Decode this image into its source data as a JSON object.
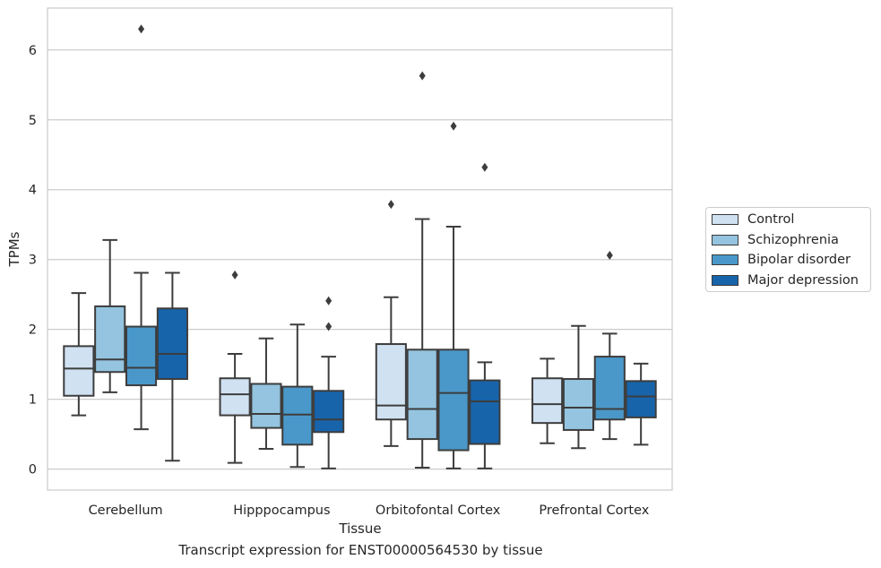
{
  "chart_data": {
    "type": "box",
    "title": "",
    "xlabel": "Tissue",
    "ylabel": "TPMs",
    "ylim": [
      -0.3,
      6.6
    ],
    "yticks": [
      0,
      1,
      2,
      3,
      4,
      5,
      6
    ],
    "grid": "horizontal",
    "legend_position": "right",
    "categories": [
      "Cerebellum",
      "Hipppocampus",
      "Orbitofontal Cortex",
      "Prefrontal Cortex"
    ],
    "series": [
      {
        "name": "Control",
        "color": "#d0e1f2",
        "boxes": [
          {
            "whisker_low": 0.77,
            "q1": 1.05,
            "median": 1.44,
            "q3": 1.76,
            "whisker_high": 2.52,
            "outliers": []
          },
          {
            "whisker_low": 0.09,
            "q1": 0.77,
            "median": 1.07,
            "q3": 1.3,
            "whisker_high": 1.65,
            "outliers": [
              2.78
            ]
          },
          {
            "whisker_low": 0.33,
            "q1": 0.71,
            "median": 0.91,
            "q3": 1.79,
            "whisker_high": 2.46,
            "outliers": [
              3.79
            ]
          },
          {
            "whisker_low": 0.37,
            "q1": 0.66,
            "median": 0.93,
            "q3": 1.3,
            "whisker_high": 1.58,
            "outliers": []
          }
        ]
      },
      {
        "name": "Schizophrenia",
        "color": "#94c4df",
        "boxes": [
          {
            "whisker_low": 1.1,
            "q1": 1.39,
            "median": 1.57,
            "q3": 2.33,
            "whisker_high": 3.28,
            "outliers": []
          },
          {
            "whisker_low": 0.29,
            "q1": 0.59,
            "median": 0.79,
            "q3": 1.22,
            "whisker_high": 1.87,
            "outliers": []
          },
          {
            "whisker_low": 0.02,
            "q1": 0.43,
            "median": 0.86,
            "q3": 1.71,
            "whisker_high": 3.58,
            "outliers": [
              5.63
            ]
          },
          {
            "whisker_low": 0.3,
            "q1": 0.56,
            "median": 0.88,
            "q3": 1.29,
            "whisker_high": 2.05,
            "outliers": []
          }
        ]
      },
      {
        "name": "Bipolar disorder",
        "color": "#4a98c9",
        "boxes": [
          {
            "whisker_low": 0.57,
            "q1": 1.2,
            "median": 1.45,
            "q3": 2.04,
            "whisker_high": 2.81,
            "outliers": [
              6.3
            ]
          },
          {
            "whisker_low": 0.03,
            "q1": 0.35,
            "median": 0.78,
            "q3": 1.18,
            "whisker_high": 2.07,
            "outliers": []
          },
          {
            "whisker_low": 0.01,
            "q1": 0.27,
            "median": 1.09,
            "q3": 1.71,
            "whisker_high": 3.47,
            "outliers": [
              4.91
            ]
          },
          {
            "whisker_low": 0.43,
            "q1": 0.71,
            "median": 0.86,
            "q3": 1.61,
            "whisker_high": 1.94,
            "outliers": [
              3.06
            ]
          }
        ]
      },
      {
        "name": "Major depression",
        "color": "#1764ab",
        "boxes": [
          {
            "whisker_low": 0.12,
            "q1": 1.29,
            "median": 1.65,
            "q3": 2.3,
            "whisker_high": 2.81,
            "outliers": []
          },
          {
            "whisker_low": 0.01,
            "q1": 0.53,
            "median": 0.71,
            "q3": 1.12,
            "whisker_high": 1.61,
            "outliers": [
              2.04,
              2.41
            ]
          },
          {
            "whisker_low": 0.01,
            "q1": 0.36,
            "median": 0.97,
            "q3": 1.27,
            "whisker_high": 1.53,
            "outliers": [
              4.32
            ]
          },
          {
            "whisker_low": 0.35,
            "q1": 0.74,
            "median": 1.04,
            "q3": 1.26,
            "whisker_high": 1.51,
            "outliers": []
          }
        ]
      }
    ],
    "caption": "Transcript expression for ENST00000564530 by tissue"
  }
}
